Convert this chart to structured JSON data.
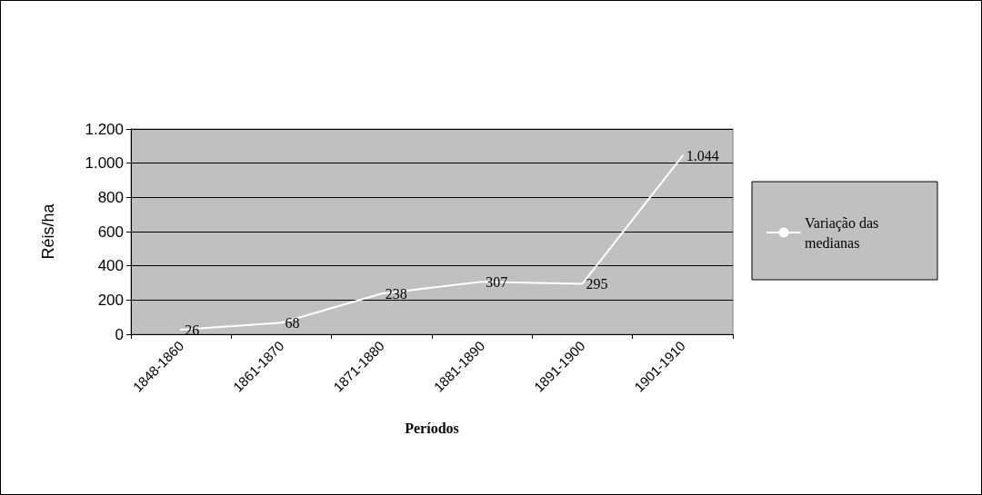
{
  "chart_data": {
    "type": "line",
    "xlabel": "Períodos",
    "ylabel": "Réis/ha",
    "categories": [
      "1848-1860",
      "1861-1870",
      "1871-1880",
      "1881-1890",
      "1891-1900",
      "1901-1910"
    ],
    "series": [
      {
        "name": "Variação das medianas",
        "color": "#ffffff",
        "values": [
          26,
          68,
          238,
          307,
          295,
          1044
        ],
        "value_labels": [
          "26",
          "68",
          "238",
          "307",
          "295",
          "1.044"
        ]
      }
    ],
    "ylim": [
      0,
      1200
    ],
    "yticks": [
      0,
      200,
      400,
      600,
      800,
      {
        "value": 1000,
        "label": "1.000"
      },
      {
        "value": 1200,
        "label": "1.200"
      }
    ],
    "grid": "y",
    "legend": "right",
    "marker": "none",
    "line_style": "solid"
  }
}
